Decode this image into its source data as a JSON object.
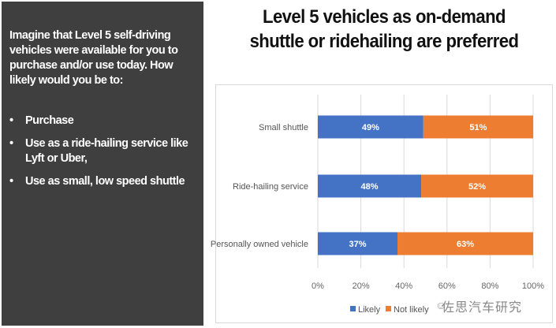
{
  "panel": {
    "intro": "Imagine that Level 5 self-driving vehicles were available for you to purchase and/or use today. How likely would you be to:",
    "bullet_glyph": "•",
    "bullets": [
      "Purchase",
      "Use  as a ride-hailing service like Lyft or Uber,",
      "Use  as small, low speed shuttle"
    ]
  },
  "title_line1": "Level 5 vehicles as on-demand",
  "title_line2": "shuttle or ridehailing are preferred",
  "watermark": {
    "icon": "wechat-icon",
    "text": "佐思汽车研究"
  },
  "chart_data": {
    "type": "bar",
    "orientation": "horizontal",
    "stacked": true,
    "title": "Level 5 vehicles as on-demand shuttle or ridehailing are preferred",
    "categories": [
      "Small shuttle",
      "Ride-hailing service",
      "Personally owned vehicle"
    ],
    "series": [
      {
        "name": "Likely",
        "color": "#4472c4",
        "values": [
          49,
          48,
          37
        ],
        "labels": [
          "49%",
          "48%",
          "37%"
        ]
      },
      {
        "name": "Not likely",
        "color": "#ed7d31",
        "values": [
          51,
          52,
          63
        ],
        "labels": [
          "51%",
          "52%",
          "63%"
        ]
      }
    ],
    "xlim": [
      0,
      100
    ],
    "xticks": [
      0,
      20,
      40,
      60,
      80,
      100
    ],
    "xtick_labels": [
      "0%",
      "20%",
      "40%",
      "60%",
      "80%",
      "100%"
    ],
    "xlabel": "",
    "ylabel": "",
    "grid": true,
    "legend_position": "bottom"
  }
}
